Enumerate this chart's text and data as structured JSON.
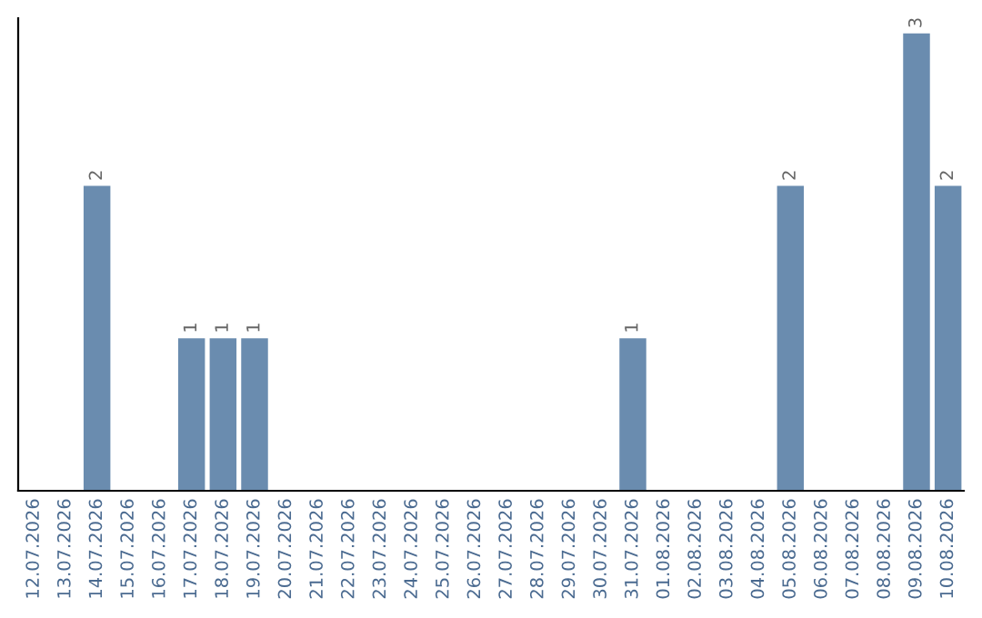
{
  "chart_data": {
    "type": "bar",
    "categories": [
      "12.07.2026",
      "13.07.2026",
      "14.07.2026",
      "15.07.2026",
      "16.07.2026",
      "17.07.2026",
      "18.07.2026",
      "19.07.2026",
      "20.07.2026",
      "21.07.2026",
      "22.07.2026",
      "23.07.2026",
      "24.07.2026",
      "25.07.2026",
      "26.07.2026",
      "27.07.2026",
      "28.07.2026",
      "29.07.2026",
      "30.07.2026",
      "31.07.2026",
      "01.08.2026",
      "02.08.2026",
      "03.08.2026",
      "04.08.2026",
      "05.08.2026",
      "06.08.2026",
      "07.08.2026",
      "08.08.2026",
      "09.08.2026",
      "10.08.2026"
    ],
    "values": [
      0,
      0,
      2,
      0,
      0,
      1,
      1,
      1,
      0,
      0,
      0,
      0,
      0,
      0,
      0,
      0,
      0,
      0,
      0,
      1,
      0,
      0,
      0,
      0,
      2,
      0,
      0,
      0,
      3,
      2
    ],
    "value_labels": [
      null,
      null,
      "2",
      null,
      null,
      "1",
      "1",
      "1",
      null,
      null,
      null,
      null,
      null,
      null,
      null,
      null,
      null,
      null,
      null,
      "1",
      null,
      null,
      null,
      null,
      "2",
      null,
      null,
      null,
      "3",
      "2"
    ],
    "color": "#6a8caf",
    "ylim": [
      0,
      3.1
    ],
    "tick_labels": "x",
    "grid": false,
    "legend": false
  }
}
